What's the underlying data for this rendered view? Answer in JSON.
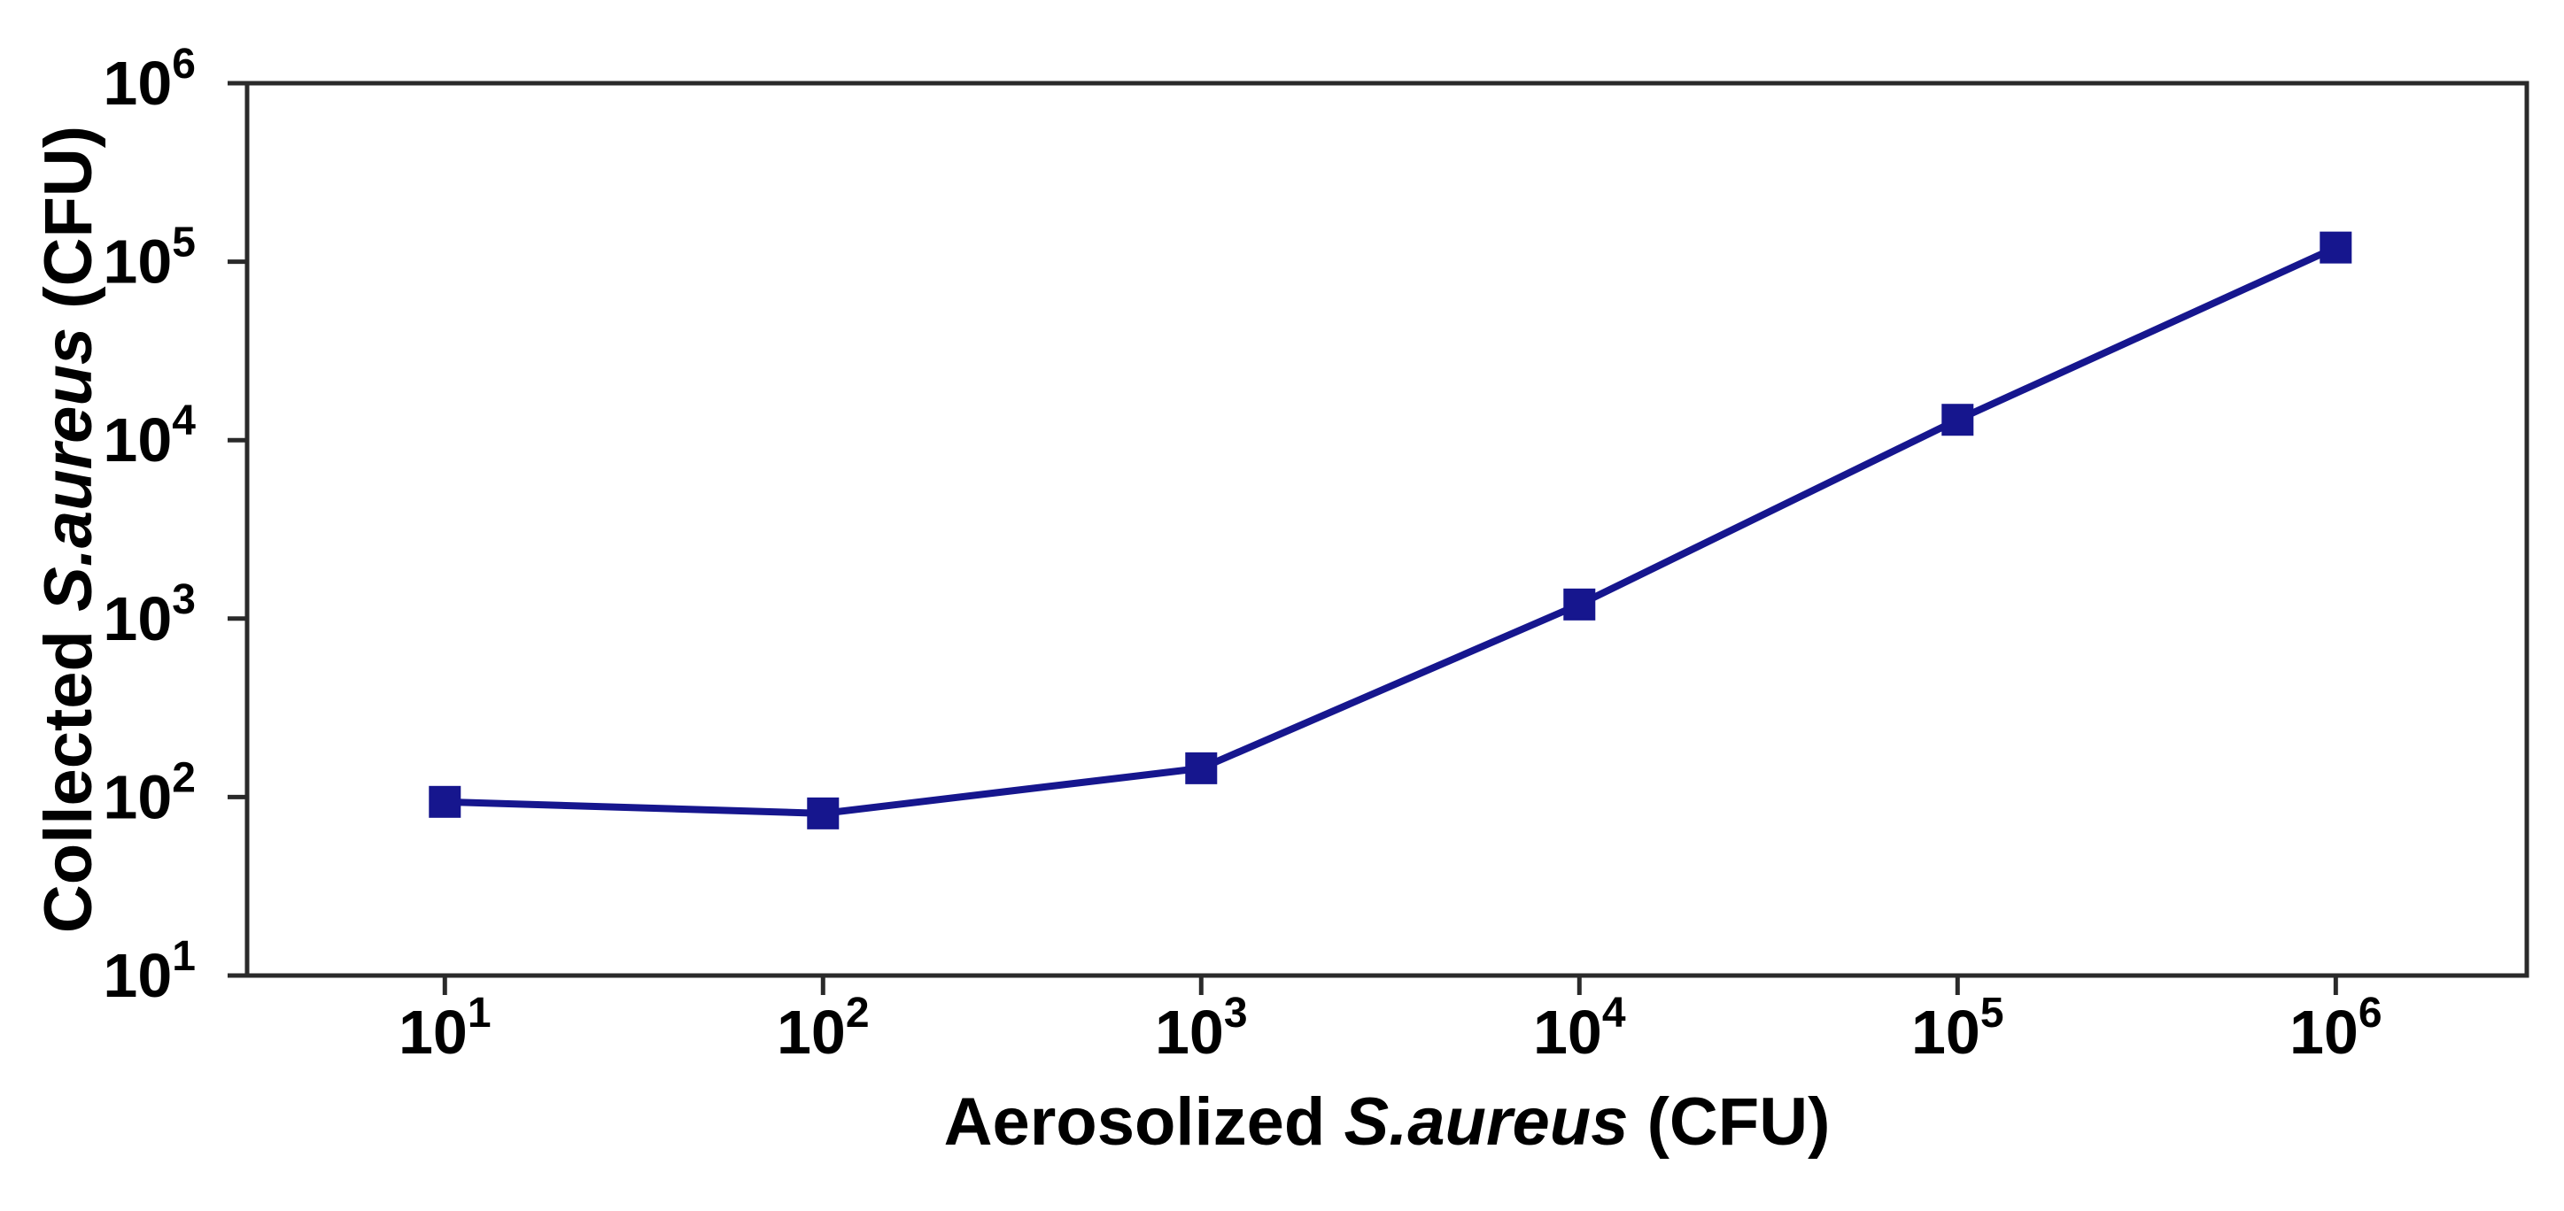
{
  "chart_data": {
    "type": "line",
    "title": "",
    "x": [
      10,
      100,
      1000,
      10000,
      100000,
      1000000
    ],
    "series": [
      {
        "name": "Collected S.aureus",
        "values": [
          94,
          81,
          145,
          1200,
          13000,
          120000
        ],
        "color": "#16168e",
        "marker": "square"
      }
    ],
    "xlabel": {
      "prefix": "Aerosolized ",
      "species": "S.aureus",
      "suffix": " (CFU)"
    },
    "ylabel": {
      "prefix": "Collected ",
      "species": "S.aureus",
      "suffix": " (CFU)"
    },
    "x_scale": "log",
    "y_scale": "log",
    "xlim": [
      3,
      3200000
    ],
    "ylim": [
      10,
      1000000
    ],
    "x_tick_base": "10",
    "y_tick_base": "10",
    "x_tick_exponents": [
      "1",
      "2",
      "3",
      "4",
      "5",
      "6"
    ],
    "y_tick_exponents": [
      "1",
      "2",
      "3",
      "4",
      "5",
      "6"
    ],
    "grid": false,
    "legend": false,
    "frame": "full-box",
    "axis_color": "#2a2a2a",
    "text_color": "#000000",
    "background_color": "#ffffff"
  }
}
